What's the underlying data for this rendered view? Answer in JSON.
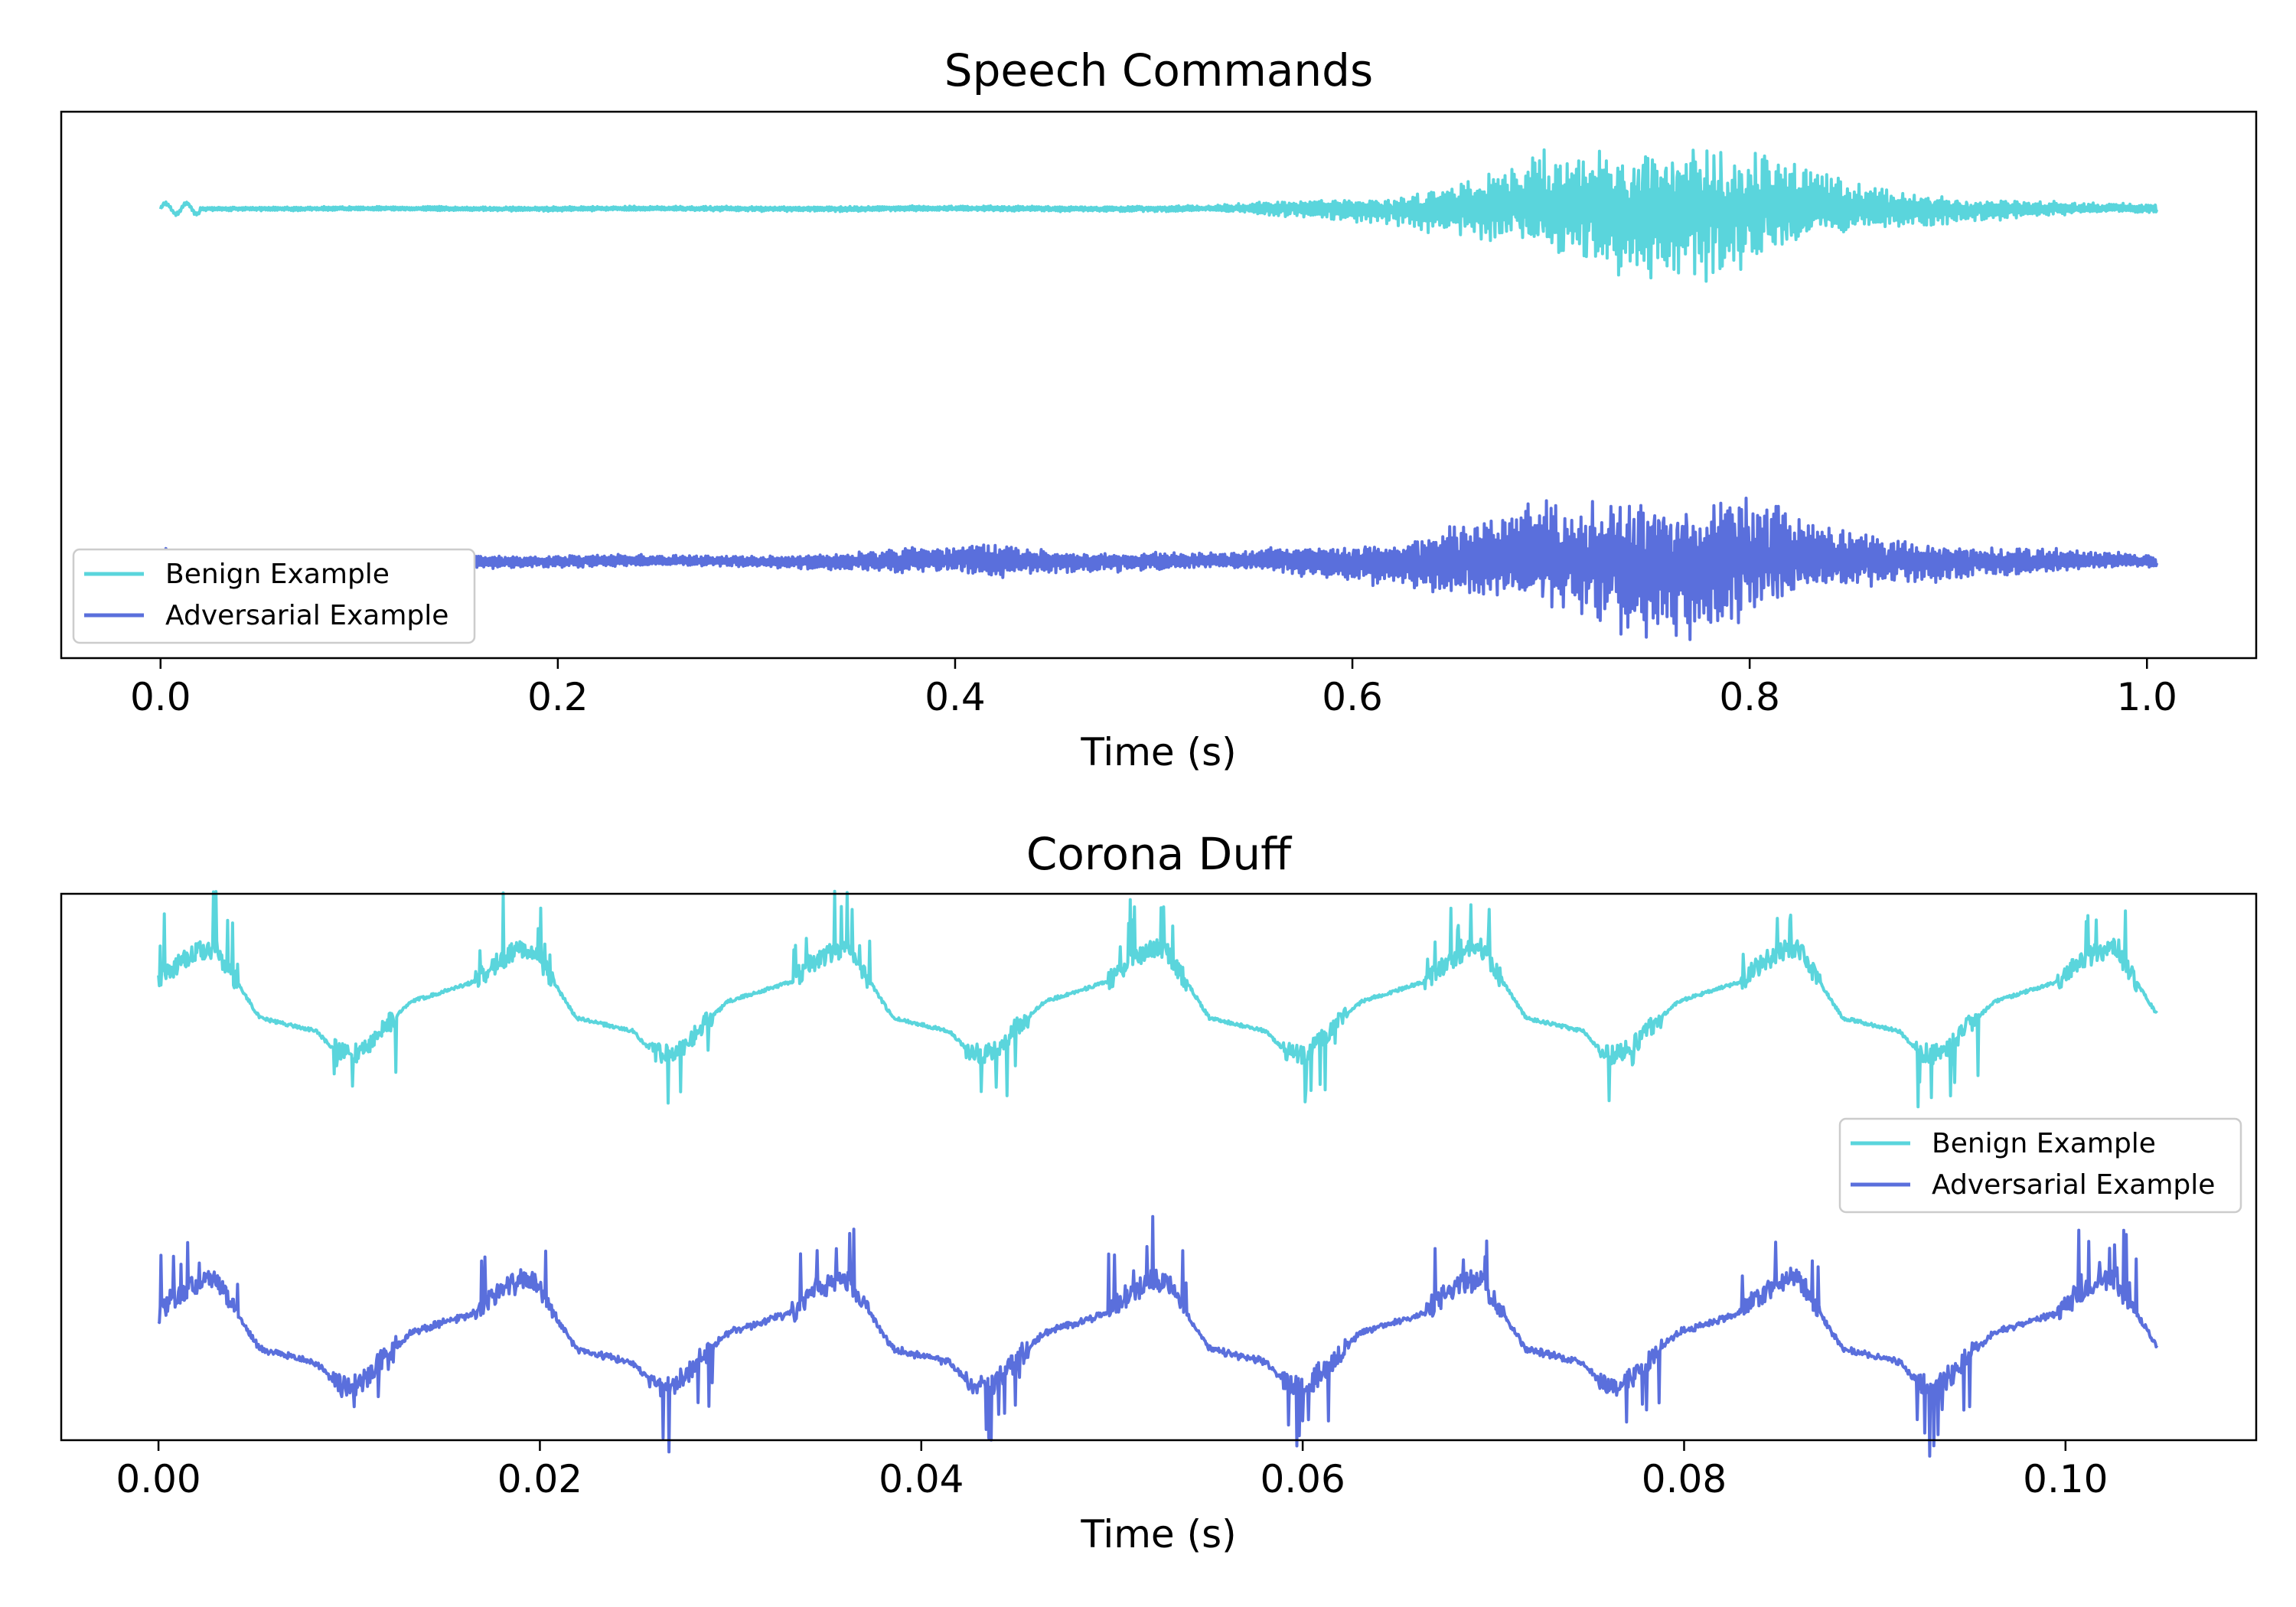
{
  "chart_data": [
    {
      "type": "line",
      "title": "Speech Commands",
      "xlabel": "Time (s)",
      "ylabel": "",
      "xlim": [
        -0.05,
        1.055
      ],
      "xticks": [
        0.0,
        0.2,
        0.4,
        0.6,
        0.8,
        1.0
      ],
      "xtick_labels": [
        "0.0",
        "0.2",
        "0.4",
        "0.6",
        "0.8",
        "1.0"
      ],
      "y_ticks_shown": false,
      "grid": false,
      "legend": "lower-left",
      "series": [
        {
          "name": "Benign Example",
          "color": "#5ad5dc",
          "offset": 1.0,
          "envelope_t": [
            0.0,
            0.53,
            0.56,
            0.62,
            0.66,
            0.7,
            0.75,
            0.77,
            0.8,
            0.83,
            0.87,
            0.92,
            0.97,
            1.005
          ],
          "envelope_a": [
            0.01,
            0.015,
            0.04,
            0.07,
            0.16,
            0.28,
            0.34,
            0.37,
            0.3,
            0.18,
            0.1,
            0.06,
            0.03,
            0.02
          ]
        },
        {
          "name": "Adversarial Example",
          "color": "#5a6fdc",
          "offset": -1.0,
          "envelope_t": [
            0.0,
            0.03,
            0.06,
            0.3,
            0.35,
            0.4,
            0.42,
            0.45,
            0.53,
            0.56,
            0.62,
            0.66,
            0.7,
            0.75,
            0.77,
            0.8,
            0.83,
            0.87,
            0.92,
            0.97,
            1.005
          ],
          "envelope_a": [
            0.04,
            0.07,
            0.04,
            0.03,
            0.05,
            0.08,
            0.1,
            0.06,
            0.04,
            0.07,
            0.12,
            0.2,
            0.3,
            0.36,
            0.38,
            0.32,
            0.2,
            0.12,
            0.08,
            0.05,
            0.03
          ]
        }
      ]
    },
    {
      "type": "line",
      "title": "Corona Duff",
      "xlabel": "Time (s)",
      "ylabel": "",
      "xlim": [
        -0.0051,
        0.11
      ],
      "xticks": [
        0.0,
        0.02,
        0.04,
        0.06,
        0.08,
        0.1
      ],
      "xtick_labels": [
        "0.00",
        "0.02",
        "0.04",
        "0.06",
        "0.08",
        "0.10"
      ],
      "y_ticks_shown": false,
      "grid": false,
      "legend": "center-right",
      "period_s": 0.0166,
      "duration_s": 0.1048,
      "series": [
        {
          "name": "Benign Example",
          "color": "#5ad5dc",
          "offset": 1.0
        },
        {
          "name": "Adversarial Example",
          "color": "#5a6fdc",
          "offset": -1.0
        }
      ]
    }
  ]
}
